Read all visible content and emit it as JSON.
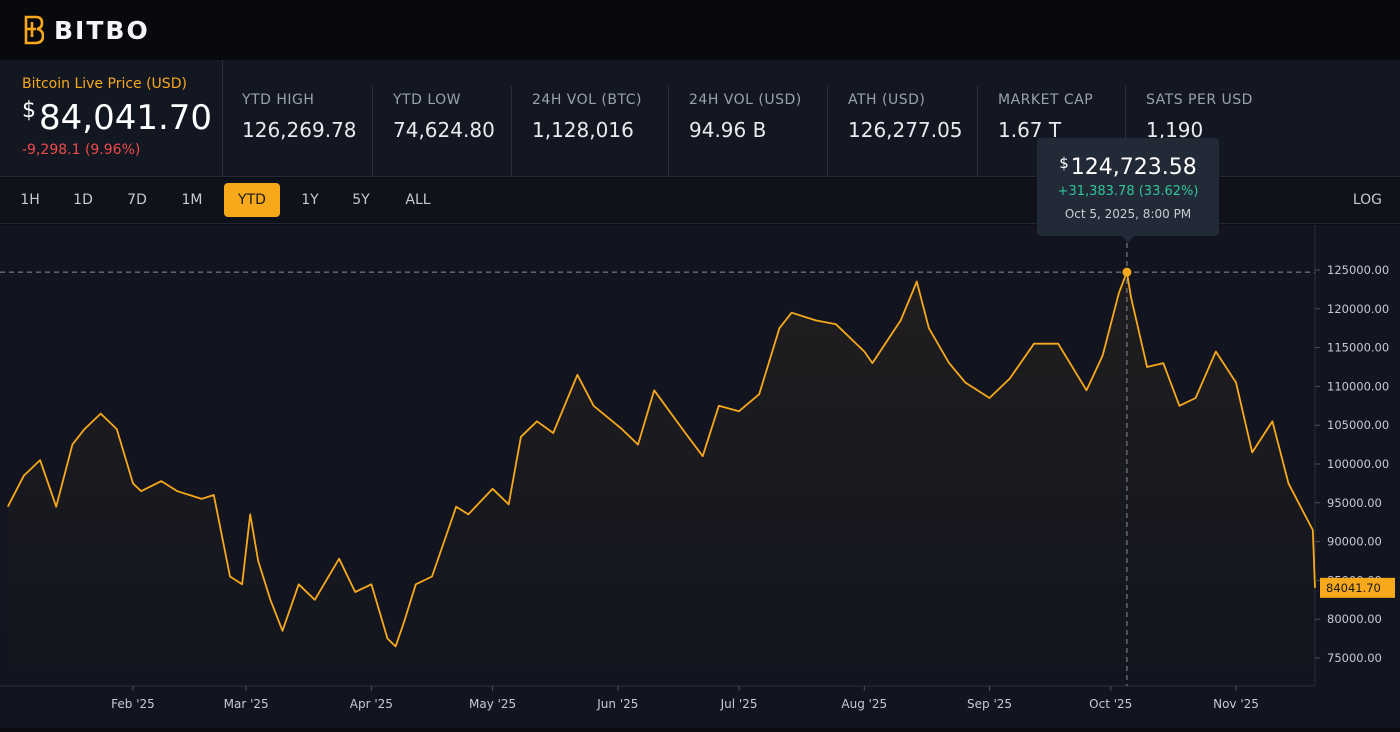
{
  "brand": {
    "name": "BITBO",
    "accent": "#f7a81b"
  },
  "live": {
    "label": "Bitcoin Live Price (USD)",
    "currency": "$",
    "price": "84,041.70",
    "change": "-9,298.1 (9.96%)"
  },
  "stats": [
    {
      "label": "YTD HIGH",
      "value": "126,269.78"
    },
    {
      "label": "YTD LOW",
      "value": "74,624.80"
    },
    {
      "label": "24H VOL (BTC)",
      "value": "1,128,016"
    },
    {
      "label": "24H VOL (USD)",
      "value": "94.96 B"
    },
    {
      "label": "ATH (USD)",
      "value": "126,277.05"
    },
    {
      "label": "MARKET CAP",
      "value": "1.67 T"
    },
    {
      "label": "SATS PER USD",
      "value": "1,190"
    }
  ],
  "ranges": [
    "1H",
    "1D",
    "7D",
    "1M",
    "YTD",
    "1Y",
    "5Y",
    "ALL"
  ],
  "active_range": "YTD",
  "log_label": "LOG",
  "tooltip": {
    "currency": "$",
    "price": "124,723.58",
    "change": "+31,383.78 (33.62%)",
    "date": "Oct 5, 2025, 8:00 PM"
  },
  "current_price_tag": "84041.70",
  "colors": {
    "line": "#f7a81b",
    "negative": "#ee4b4b",
    "positive": "#2fc49a"
  },
  "chart_data": {
    "type": "line",
    "title": "",
    "xlabel": "",
    "ylabel": "",
    "ylim": [
      71000,
      130000
    ],
    "x_ticks": [
      "Feb '25",
      "Mar '25",
      "Apr '25",
      "May '25",
      "Jun '25",
      "Jul '25",
      "Aug '25",
      "Sep '25",
      "Oct '25",
      "Nov '25"
    ],
    "y_ticks": [
      "125000.00",
      "120000.00",
      "115000.00",
      "110000.00",
      "105000.00",
      "100000.00",
      "95000.00",
      "90000.00",
      "85000.00",
      "80000.00",
      "75000.00"
    ],
    "x": [
      "2025-01-01",
      "2025-01-05",
      "2025-01-09",
      "2025-01-13",
      "2025-01-17",
      "2025-01-20",
      "2025-01-24",
      "2025-01-28",
      "2025-02-01",
      "2025-02-03",
      "2025-02-08",
      "2025-02-12",
      "2025-02-18",
      "2025-02-21",
      "2025-02-25",
      "2025-02-28",
      "2025-03-02",
      "2025-03-04",
      "2025-03-07",
      "2025-03-10",
      "2025-03-14",
      "2025-03-18",
      "2025-03-24",
      "2025-03-28",
      "2025-04-01",
      "2025-04-05",
      "2025-04-07",
      "2025-04-09",
      "2025-04-12",
      "2025-04-16",
      "2025-04-22",
      "2025-04-25",
      "2025-05-01",
      "2025-05-05",
      "2025-05-08",
      "2025-05-12",
      "2025-05-16",
      "2025-05-22",
      "2025-05-26",
      "2025-06-02",
      "2025-06-06",
      "2025-06-10",
      "2025-06-17",
      "2025-06-22",
      "2025-06-26",
      "2025-07-01",
      "2025-07-06",
      "2025-07-11",
      "2025-07-14",
      "2025-07-20",
      "2025-07-25",
      "2025-08-01",
      "2025-08-03",
      "2025-08-10",
      "2025-08-14",
      "2025-08-17",
      "2025-08-22",
      "2025-08-26",
      "2025-09-01",
      "2025-09-06",
      "2025-09-12",
      "2025-09-18",
      "2025-09-25",
      "2025-09-29",
      "2025-10-03",
      "2025-10-05",
      "2025-10-06",
      "2025-10-10",
      "2025-10-14",
      "2025-10-18",
      "2025-10-22",
      "2025-10-27",
      "2025-11-01",
      "2025-11-05",
      "2025-11-10",
      "2025-11-14",
      "2025-11-17",
      "2025-11-20",
      "2025-11-21"
    ],
    "series": [
      {
        "values": [
          94500,
          98500,
          100500,
          94500,
          102500,
          104500,
          106500,
          104500,
          97500,
          96500,
          97800,
          96500,
          95500,
          96000,
          85500,
          84500,
          93500,
          87500,
          82500,
          78500,
          84500,
          82500,
          87800,
          83500,
          84500,
          77500,
          76500,
          79500,
          84500,
          85500,
          94500,
          93500,
          96800,
          94800,
          103500,
          105500,
          104000,
          111500,
          107500,
          104500,
          102500,
          109500,
          104500,
          101000,
          107500,
          106800,
          109000,
          117500,
          119500,
          118500,
          118000,
          114500,
          113000,
          118500,
          123500,
          117500,
          113000,
          110500,
          108500,
          111000,
          115500,
          115500,
          109500,
          114000,
          122000,
          124723.58,
          121500,
          112500,
          113000,
          107500,
          108500,
          114500,
          110500,
          101500,
          105500,
          97500,
          94500,
          91500,
          84041.7
        ]
      }
    ],
    "highlight": {
      "x": "2025-10-05",
      "y": 124723.58
    },
    "current": 84041.7,
    "grid": false,
    "y_scale": "linear",
    "axis_position": "right"
  }
}
